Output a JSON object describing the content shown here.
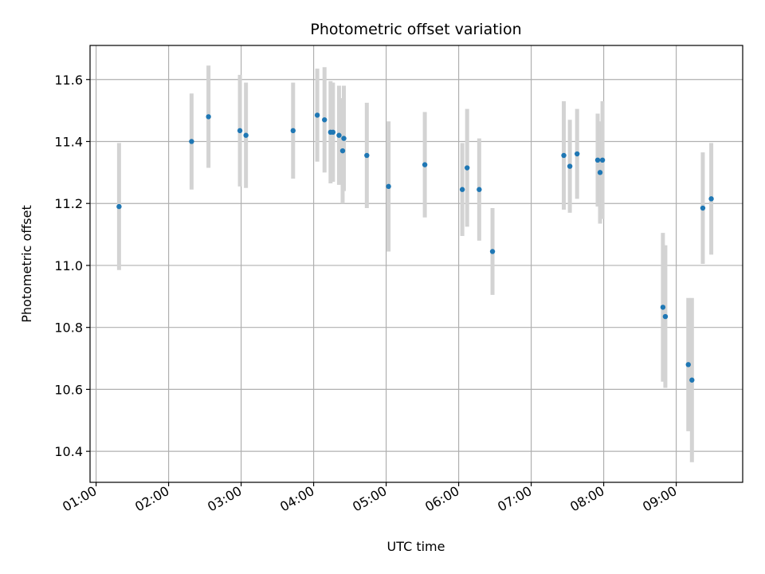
{
  "chart_data": {
    "type": "scatter",
    "title": "Photometric offset variation",
    "xlabel": "UTC time",
    "ylabel": "Photometric offset",
    "x_tick_labels": [
      "01:00",
      "02:00",
      "03:00",
      "04:00",
      "05:00",
      "06:00",
      "07:00",
      "08:00",
      "09:00"
    ],
    "y_tick_labels": [
      "10.4",
      "10.6",
      "10.8",
      "11.0",
      "11.2",
      "11.4",
      "11.6"
    ],
    "xlim": [
      "00:55",
      "09:55"
    ],
    "ylim": [
      10.3,
      11.71
    ],
    "grid": true,
    "colors": {
      "points": "#1f77b4",
      "error_bars": "#d3d3d3",
      "grid": "#b0b0b0"
    },
    "points": [
      {
        "x": "01:19",
        "y": 11.19,
        "yerr": 0.205
      },
      {
        "x": "02:19",
        "y": 11.4,
        "yerr": 0.155
      },
      {
        "x": "02:33",
        "y": 11.48,
        "yerr": 0.165
      },
      {
        "x": "02:59",
        "y": 11.435,
        "yerr": 0.18
      },
      {
        "x": "03:04",
        "y": 11.42,
        "yerr": 0.17
      },
      {
        "x": "03:43",
        "y": 11.435,
        "yerr": 0.155
      },
      {
        "x": "04:03",
        "y": 11.485,
        "yerr": 0.15
      },
      {
        "x": "04:09",
        "y": 11.47,
        "yerr": 0.17
      },
      {
        "x": "04:14",
        "y": 11.43,
        "yerr": 0.165
      },
      {
        "x": "04:16",
        "y": 11.43,
        "yerr": 0.16
      },
      {
        "x": "04:21",
        "y": 11.42,
        "yerr": 0.16
      },
      {
        "x": "04:24",
        "y": 11.37,
        "yerr": 0.17
      },
      {
        "x": "04:25",
        "y": 11.41,
        "yerr": 0.17
      },
      {
        "x": "04:44",
        "y": 11.355,
        "yerr": 0.17
      },
      {
        "x": "05:02",
        "y": 11.255,
        "yerr": 0.21
      },
      {
        "x": "05:32",
        "y": 11.325,
        "yerr": 0.17
      },
      {
        "x": "06:03",
        "y": 11.245,
        "yerr": 0.15
      },
      {
        "x": "06:07",
        "y": 11.315,
        "yerr": 0.19
      },
      {
        "x": "06:17",
        "y": 11.245,
        "yerr": 0.165
      },
      {
        "x": "06:28",
        "y": 11.045,
        "yerr": 0.14
      },
      {
        "x": "07:27",
        "y": 11.355,
        "yerr": 0.175
      },
      {
        "x": "07:32",
        "y": 11.32,
        "yerr": 0.15
      },
      {
        "x": "07:38",
        "y": 11.36,
        "yerr": 0.145
      },
      {
        "x": "07:55",
        "y": 11.34,
        "yerr": 0.15
      },
      {
        "x": "07:57",
        "y": 11.3,
        "yerr": 0.165
      },
      {
        "x": "07:59",
        "y": 11.34,
        "yerr": 0.19
      },
      {
        "x": "08:49",
        "y": 10.865,
        "yerr": 0.24
      },
      {
        "x": "08:51",
        "y": 10.835,
        "yerr": 0.23
      },
      {
        "x": "09:10",
        "y": 10.68,
        "yerr": 0.215
      },
      {
        "x": "09:13",
        "y": 10.63,
        "yerr": 0.265
      },
      {
        "x": "09:22",
        "y": 11.185,
        "yerr": 0.18
      },
      {
        "x": "09:29",
        "y": 11.215,
        "yerr": 0.18
      }
    ]
  }
}
